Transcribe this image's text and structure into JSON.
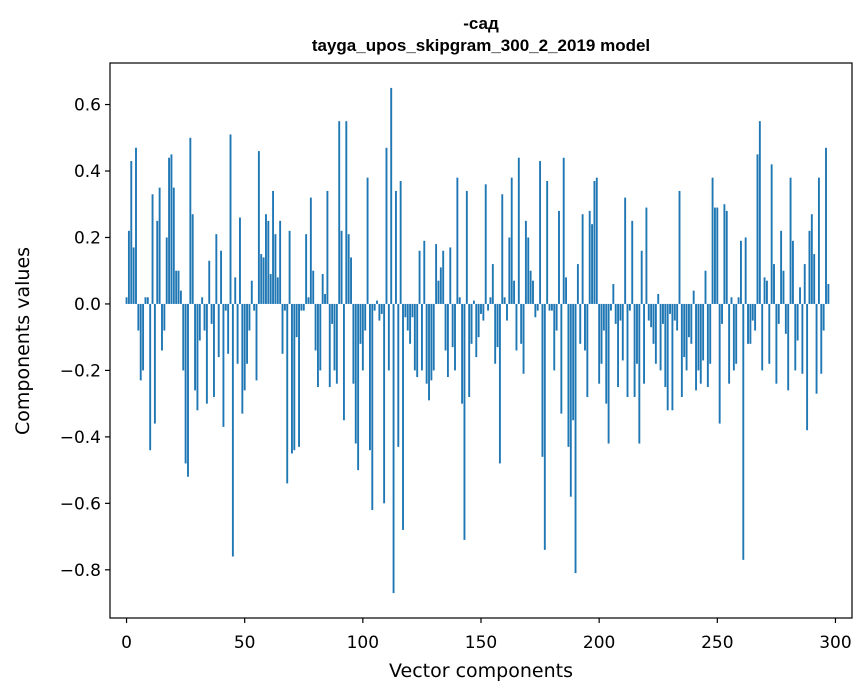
{
  "chart_data": {
    "type": "bar",
    "title_word": "-сад",
    "title_model": "tayga_upos_skipgram_300_2_2019 model",
    "xlabel": "Vector components",
    "ylabel": "Components values",
    "xlim": [
      -7,
      307
    ],
    "ylim": [
      -0.945,
      0.725
    ],
    "x_ticks": [
      0,
      50,
      100,
      150,
      200,
      250,
      300
    ],
    "y_ticks": [
      -0.8,
      -0.6,
      -0.4,
      -0.2,
      0.0,
      0.2,
      0.4,
      0.6
    ],
    "y_tick_labels": [
      "−0.8",
      "−0.6",
      "−0.4",
      "−0.2",
      "0.0",
      "0.2",
      "0.4",
      "0.6"
    ],
    "bar_color": "#1f77b4",
    "bar_width": 0.8,
    "values": [
      0.02,
      0.22,
      0.43,
      0.17,
      0.47,
      -0.08,
      -0.23,
      -0.2,
      0.02,
      0.02,
      -0.44,
      0.33,
      -0.36,
      0.25,
      0.35,
      -0.14,
      -0.08,
      0.2,
      0.44,
      0.45,
      0.35,
      0.1,
      0.1,
      0.04,
      -0.2,
      -0.48,
      -0.52,
      0.5,
      0.27,
      -0.26,
      -0.32,
      -0.11,
      0.02,
      -0.08,
      -0.3,
      0.13,
      -0.06,
      -0.28,
      0.21,
      -0.16,
      0.16,
      -0.37,
      -0.02,
      -0.15,
      0.51,
      -0.76,
      0.08,
      -0.18,
      0.26,
      -0.33,
      -0.26,
      -0.18,
      -0.08,
      0.07,
      -0.02,
      -0.23,
      0.46,
      0.15,
      0.14,
      0.27,
      0.25,
      0.09,
      0.34,
      0.21,
      0.08,
      0.25,
      -0.15,
      -0.02,
      -0.54,
      0.22,
      -0.45,
      -0.44,
      -0.1,
      -0.43,
      -0.02,
      -0.02,
      0.21,
      0.02,
      0.32,
      0.1,
      -0.14,
      -0.25,
      -0.2,
      0.09,
      0.03,
      0.34,
      -0.25,
      -0.06,
      -0.2,
      -0.24,
      0.55,
      0.22,
      -0.35,
      0.55,
      0.21,
      0.14,
      -0.24,
      -0.42,
      -0.5,
      -0.12,
      -0.2,
      -0.08,
      0.38,
      -0.44,
      -0.62,
      -0.02,
      0.01,
      -0.05,
      -0.03,
      -0.6,
      0.47,
      -0.2,
      0.65,
      -0.87,
      0.34,
      -0.43,
      0.37,
      -0.68,
      -0.04,
      -0.08,
      -0.12,
      -0.04,
      -0.2,
      -0.22,
      0.16,
      -0.2,
      0.19,
      -0.24,
      -0.29,
      -0.23,
      -0.2,
      0.18,
      0.07,
      0.11,
      0.16,
      -0.14,
      -0.22,
      0.17,
      -0.13,
      -0.2,
      0.38,
      0.02,
      -0.3,
      -0.71,
      0.34,
      -0.28,
      -0.12,
      0.01,
      -0.16,
      -0.1,
      -0.03,
      -0.05,
      0.36,
      -0.02,
      0.02,
      0.12,
      -0.18,
      -0.13,
      -0.48,
      0.33,
      0.02,
      -0.05,
      0.2,
      0.38,
      0.07,
      -0.14,
      0.44,
      -0.12,
      -0.21,
      0.25,
      0.2,
      0.1,
      0.07,
      -0.04,
      -0.02,
      0.43,
      -0.46,
      -0.74,
      0.37,
      -0.02,
      -0.02,
      -0.2,
      -0.08,
      0.28,
      -0.33,
      0.44,
      0.08,
      -0.43,
      -0.58,
      -0.35,
      -0.81,
      0.12,
      -0.12,
      0.27,
      -0.14,
      -0.28,
      0.28,
      0.24,
      0.37,
      0.38,
      -0.24,
      -0.18,
      -0.08,
      -0.3,
      -0.42,
      -0.02,
      0.06,
      -0.06,
      -0.25,
      -0.05,
      -0.17,
      0.32,
      -0.28,
      -0.02,
      0.25,
      -0.28,
      -0.18,
      -0.42,
      0.16,
      -0.24,
      0.29,
      -0.05,
      -0.07,
      -0.12,
      -0.18,
      0.03,
      -0.2,
      -0.06,
      -0.25,
      -0.32,
      -0.03,
      -0.32,
      -0.05,
      -0.08,
      0.34,
      -0.28,
      -0.16,
      -0.2,
      -0.1,
      -0.12,
      0.04,
      -0.26,
      -0.2,
      -0.24,
      -0.17,
      0.1,
      -0.25,
      -0.18,
      0.38,
      0.29,
      0.29,
      -0.36,
      -0.06,
      0.3,
      0.28,
      -0.24,
      0.02,
      -0.2,
      -0.18,
      0.02,
      0.19,
      -0.77,
      0.2,
      -0.12,
      -0.12,
      -0.05,
      -0.08,
      0.45,
      0.55,
      -0.2,
      0.08,
      0.07,
      -0.18,
      0.42,
      0.12,
      -0.24,
      -0.06,
      0.22,
      0.1,
      -0.09,
      -0.26,
      0.38,
      0.19,
      -0.2,
      -0.11,
      0.05,
      -0.21,
      0.12,
      -0.38,
      0.22,
      0.27,
      0.15,
      -0.27,
      0.38,
      -0.21,
      -0.08,
      0.47,
      0.06
    ]
  }
}
